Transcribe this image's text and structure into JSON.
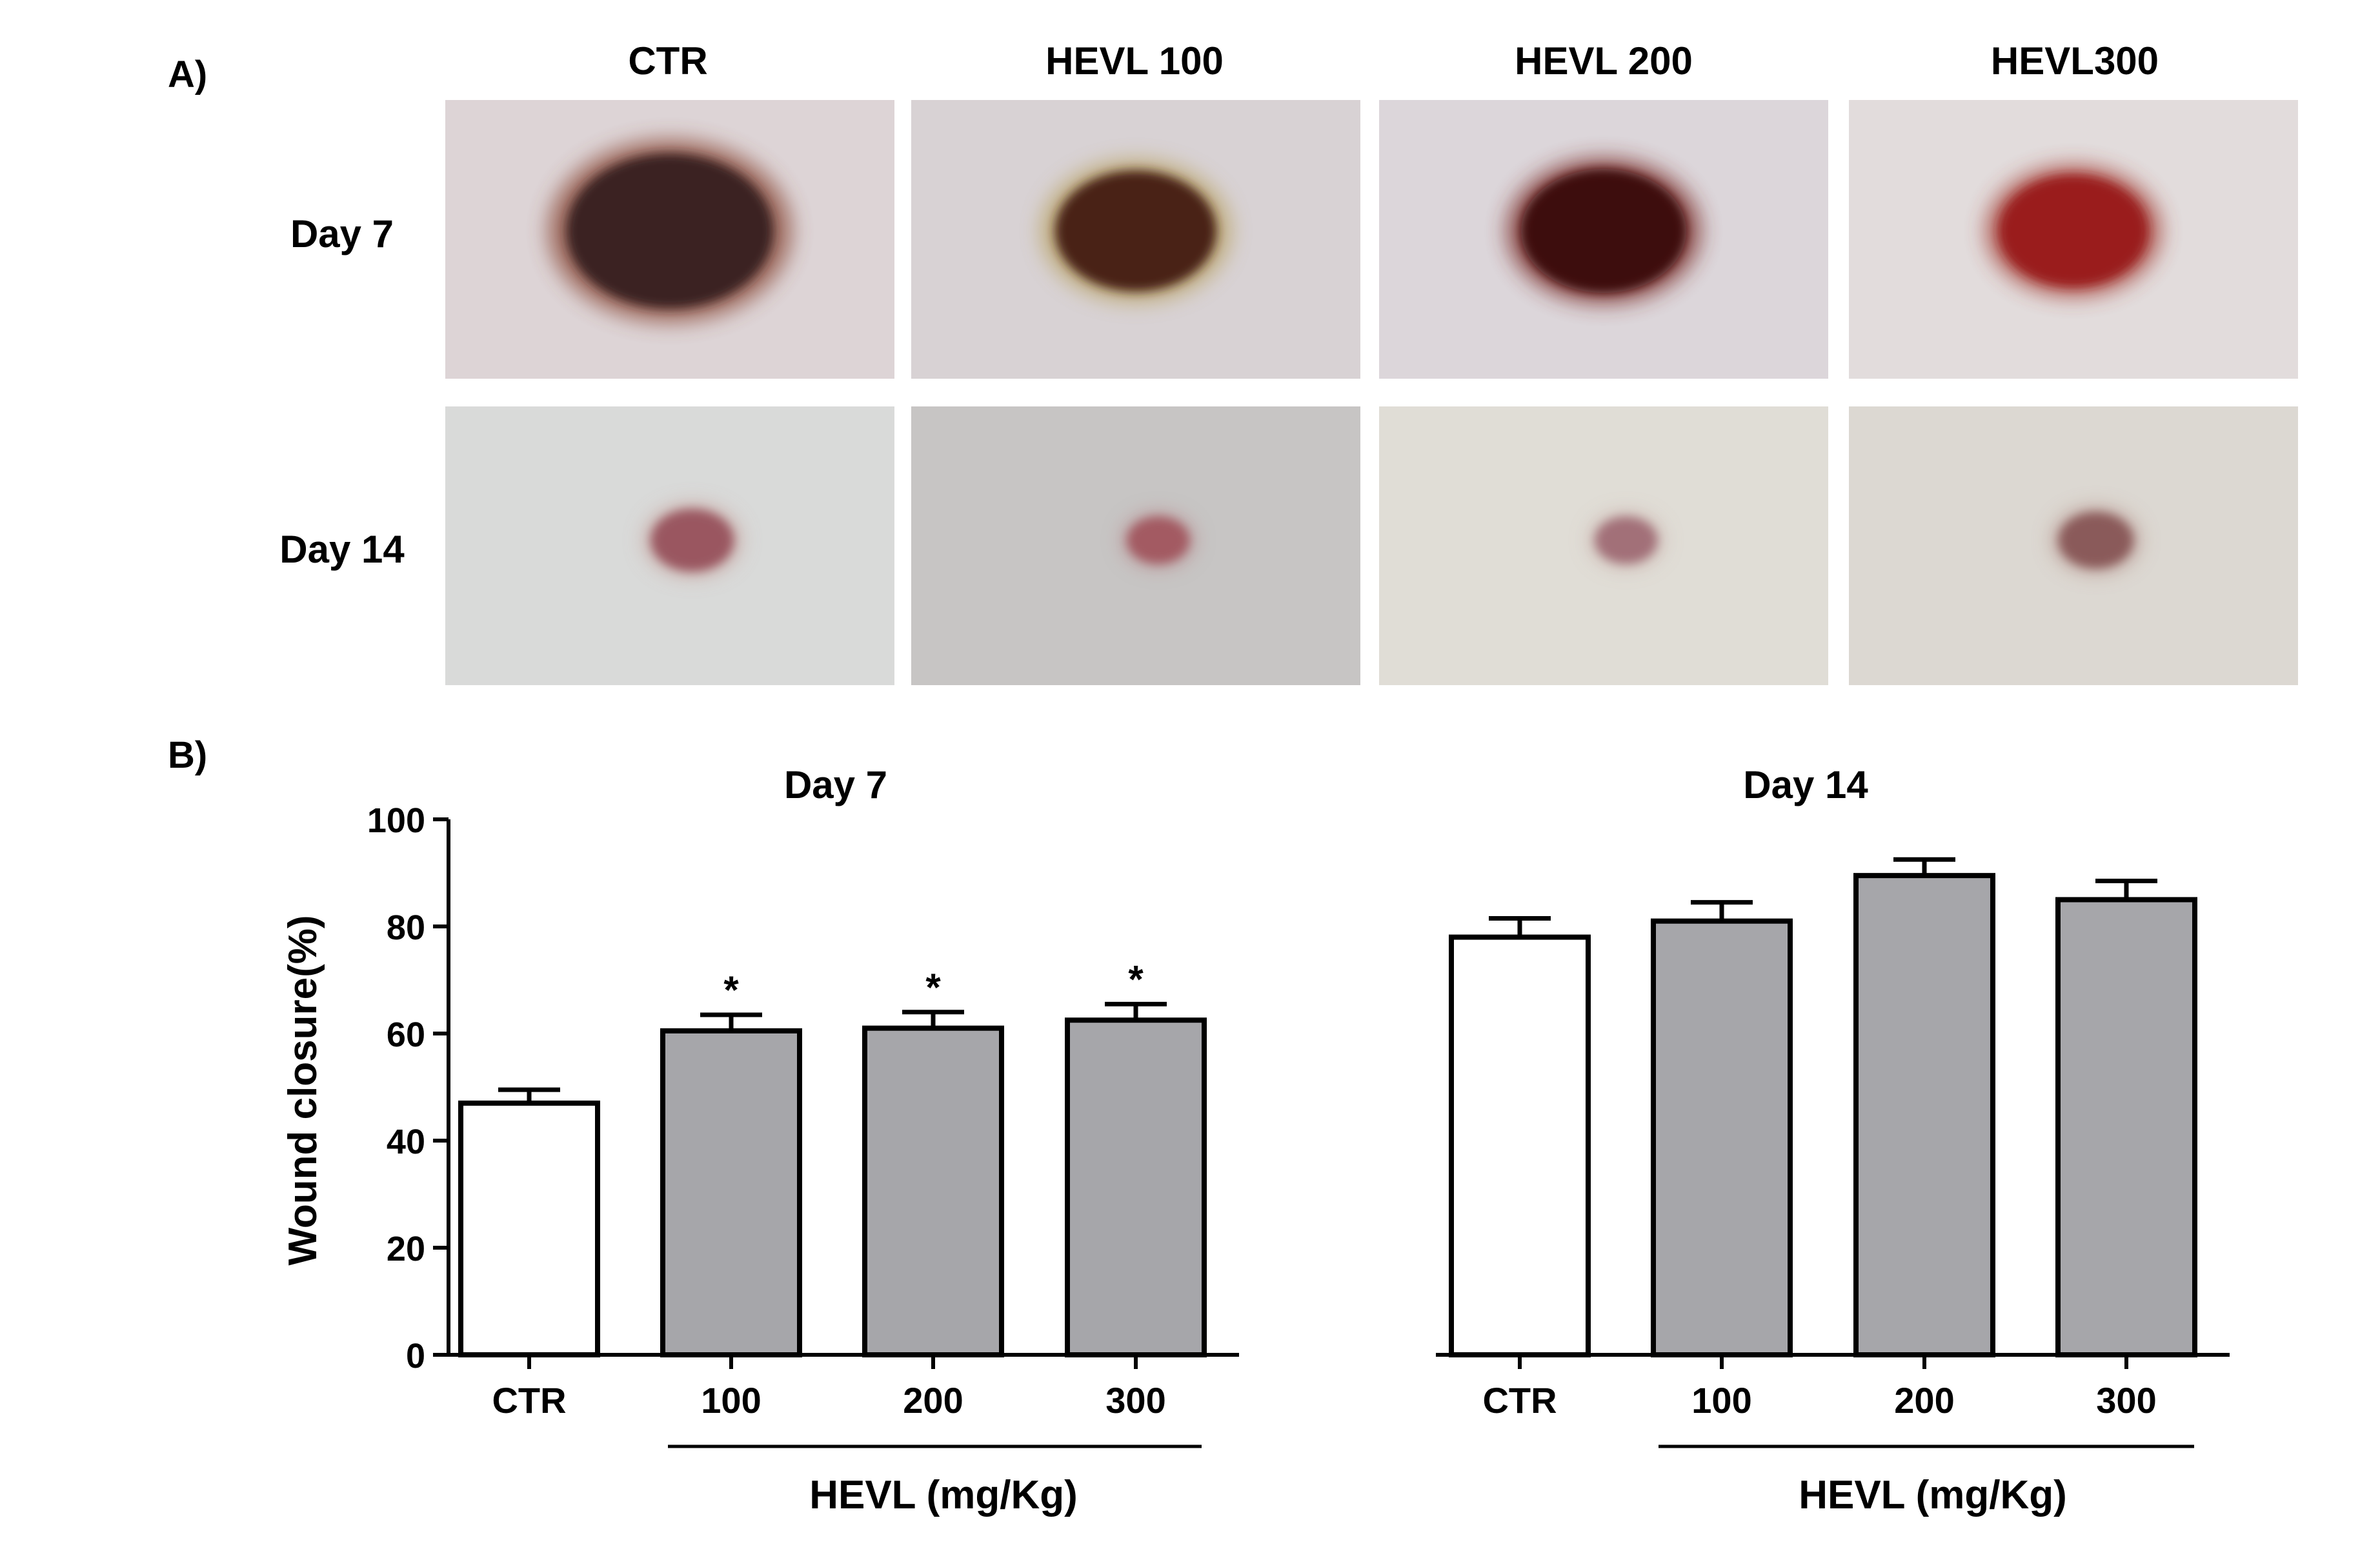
{
  "panel_a": {
    "label": "A)",
    "column_headers": [
      "CTR",
      "HEVL 100",
      "HEVL 200",
      "HEVL300"
    ],
    "row_labels": [
      "Day 7",
      "Day 14"
    ],
    "photos": [
      [
        {
          "bg": "#ddd4d6",
          "wound_color": "#3b2420",
          "rim_color": "#8a4a38",
          "wound_scale": 1.0
        },
        {
          "bg": "#d8d2d4",
          "wound_color": "#4a2018",
          "rim_color": "#b8a060",
          "wound_scale": 0.78
        },
        {
          "bg": "#dcd6da",
          "wound_color": "#3c0a10",
          "rim_color": "#7a2a28",
          "wound_scale": 0.8
        },
        {
          "bg": "#e2dcdc",
          "wound_color": "#9a1c1c",
          "rim_color": "#a33a32",
          "wound_scale": 0.72
        }
      ],
      [
        {
          "bg": "#d9dad9",
          "wound_color": "#9a5660",
          "rim_color": "#c7a6a0",
          "wound_scale": 0.4
        },
        {
          "bg": "#c7c5c4",
          "wound_color": "#a35a62",
          "rim_color": "#b89092",
          "wound_scale": 0.3
        },
        {
          "bg": "#e0ddd6",
          "wound_color": "#a27078",
          "rim_color": "#c8b0aa",
          "wound_scale": 0.3
        },
        {
          "bg": "#dcd8d2",
          "wound_color": "#8a5a5a",
          "rim_color": "#b89890",
          "wound_scale": 0.36
        }
      ]
    ]
  },
  "panel_b_label": "B)",
  "chart_data": [
    {
      "type": "bar",
      "title": "Day 7",
      "ylabel": "Wound closure(%)",
      "ylim": [
        0,
        100
      ],
      "yticks": [
        0,
        20,
        40,
        60,
        80,
        100
      ],
      "categories": [
        "CTR",
        "100",
        "200",
        "300"
      ],
      "values": [
        47,
        60.5,
        61,
        62.5
      ],
      "errors": [
        2.5,
        3,
        3,
        3
      ],
      "significance": [
        "",
        "*",
        "*",
        "*"
      ],
      "bar_colors": [
        "#ffffff",
        "#a6a6aa",
        "#a6a6aa",
        "#a6a6aa"
      ],
      "group_label": "HEVL (mg/Kg)"
    },
    {
      "type": "bar",
      "title": "Day 14",
      "ylim": [
        0,
        100
      ],
      "categories": [
        "CTR",
        "100",
        "200",
        "300"
      ],
      "values": [
        78,
        81,
        89.5,
        85
      ],
      "errors": [
        3.5,
        3.5,
        3,
        3.5
      ],
      "significance": [
        "",
        "",
        "",
        ""
      ],
      "bar_colors": [
        "#ffffff",
        "#a6a6aa",
        "#a6a6aa",
        "#a6a6aa"
      ],
      "group_label": "HEVL (mg/Kg)"
    }
  ]
}
